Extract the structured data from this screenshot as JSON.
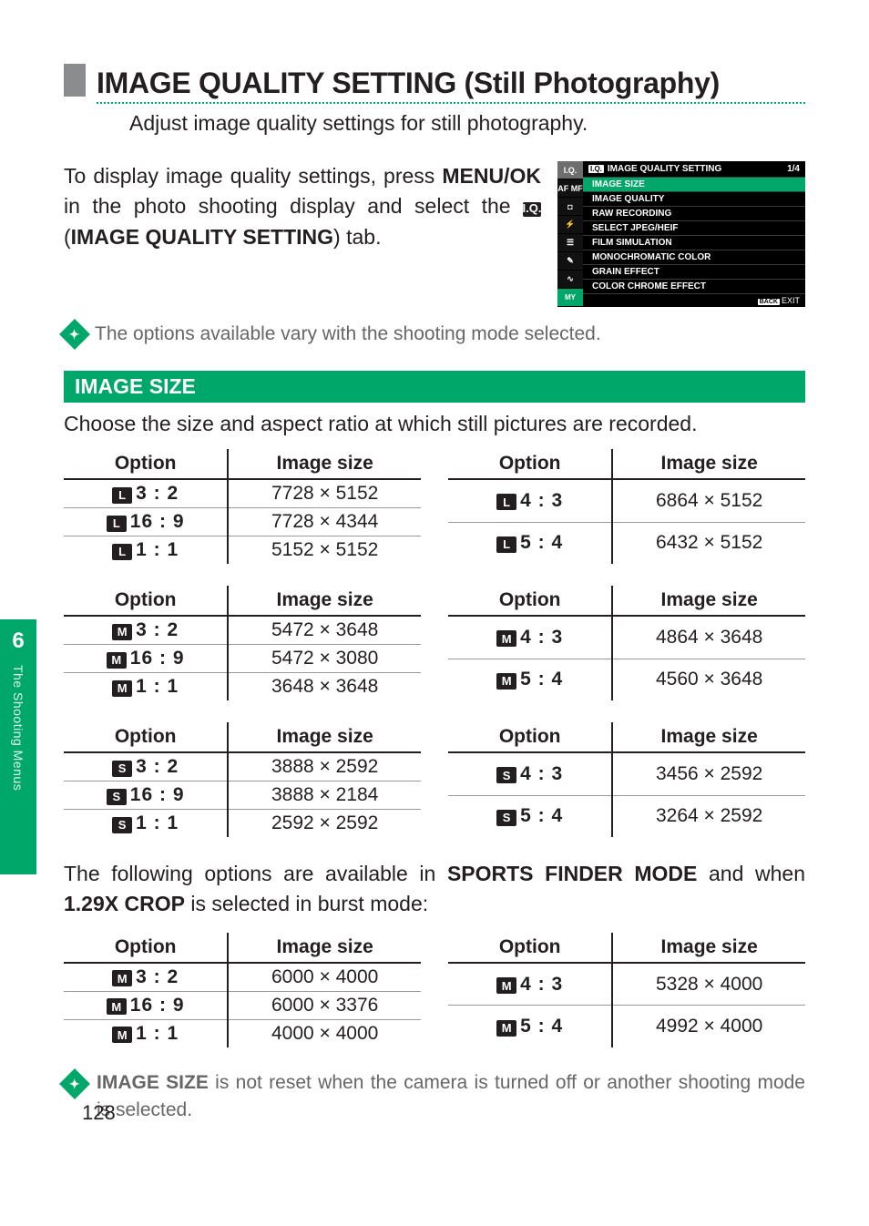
{
  "colors": {
    "accent": "#00a76a",
    "text": "#231f20",
    "muted": "#666666",
    "grey_block": "#8a8c8e",
    "black": "#000000",
    "white": "#ffffff"
  },
  "chapter": {
    "number": "6",
    "label": "The Shooting Menus"
  },
  "page_number": "128",
  "title": "IMAGE QUALITY SETTING (Still Photography)",
  "subtitle": "Adjust image quality settings for still photography.",
  "intro": {
    "line1a": "To display image quality settings, press ",
    "menuok": "MENU/OK",
    "line1b": " in the photo shooting display and select the ",
    "iq_chip": "I.Q.",
    "setting_label": "IMAGE QUALITY SETTING",
    "line1c": ") tab."
  },
  "camera_menu": {
    "side": [
      "I.Q.",
      "AF MF",
      "◘",
      "⚡",
      "☰",
      "✎",
      "∿",
      "MY"
    ],
    "header_chip": "I.Q.",
    "header": "IMAGE QUALITY SETTING",
    "page": "1/4",
    "items": [
      "IMAGE SIZE",
      "IMAGE QUALITY",
      "RAW RECORDING",
      "SELECT JPEG/HEIF",
      "FILM SIMULATION",
      "MONOCHROMATIC COLOR",
      "GRAIN EFFECT",
      "COLOR CHROME EFFECT"
    ],
    "footer_btn": "BACK",
    "footer_txt": "EXIT"
  },
  "mode_note": "The options available vary with the shooting mode selected.",
  "section": {
    "bar": "IMAGE SIZE",
    "desc": "Choose the size and aspect ratio at which still pictures are recorded."
  },
  "headers": {
    "option": "Option",
    "size": "Image size"
  },
  "groups": [
    {
      "badge": "L",
      "left": [
        [
          "3 : 2",
          "7728 × 5152"
        ],
        [
          "16 : 9",
          "7728 × 4344"
        ],
        [
          "1 : 1",
          "5152 × 5152"
        ]
      ],
      "right": [
        [
          "4 : 3",
          "6864 × 5152"
        ],
        [
          "5 : 4",
          "6432 × 5152"
        ]
      ]
    },
    {
      "badge": "M",
      "left": [
        [
          "3 : 2",
          "5472 × 3648"
        ],
        [
          "16 : 9",
          "5472 × 3080"
        ],
        [
          "1 : 1",
          "3648 × 3648"
        ]
      ],
      "right": [
        [
          "4 : 3",
          "4864 × 3648"
        ],
        [
          "5 : 4",
          "4560 × 3648"
        ]
      ]
    },
    {
      "badge": "S",
      "left": [
        [
          "3 : 2",
          "3888 × 2592"
        ],
        [
          "16 : 9",
          "3888 × 2184"
        ],
        [
          "1 : 1",
          "2592 × 2592"
        ]
      ],
      "right": [
        [
          "4 : 3",
          "3456 × 2592"
        ],
        [
          "5 : 4",
          "3264 × 2592"
        ]
      ]
    }
  ],
  "between": {
    "a": "The following options are available in ",
    "sports": "SPORTS FINDER MODE",
    "b": " and when ",
    "crop": "1.29X CROP",
    "c": " is selected in burst mode:"
  },
  "crop_group": {
    "badge": "M",
    "left": [
      [
        "3 : 2",
        "6000 × 4000"
      ],
      [
        "16 : 9",
        "6000 × 3376"
      ],
      [
        "1 : 1",
        "4000 × 4000"
      ]
    ],
    "right": [
      [
        "4 : 3",
        "5328 × 4000"
      ],
      [
        "5 : 4",
        "4992 × 4000"
      ]
    ]
  },
  "final_note": {
    "bold": "IMAGE SIZE",
    "rest": " is not reset when the camera is turned off or another shooting mode is selected."
  }
}
